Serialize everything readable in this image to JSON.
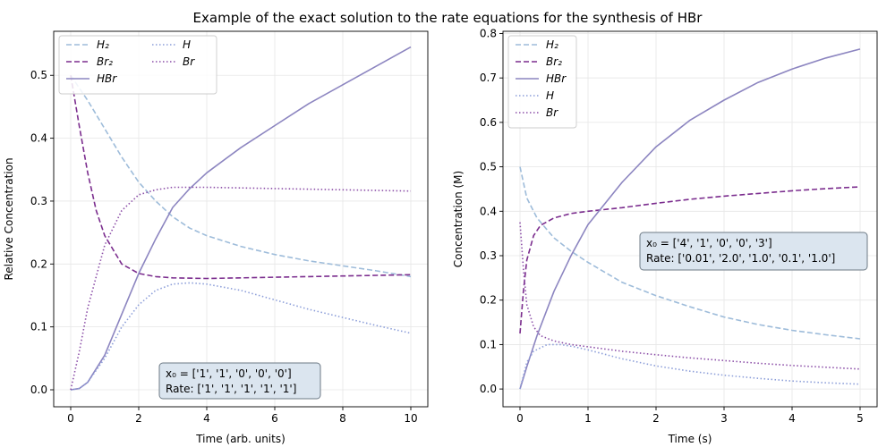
{
  "figure": {
    "title": "Example of the exact solution to the rate equations for the synthesis of HBr"
  },
  "chart_data": [
    {
      "type": "line",
      "xlabel": "Time (arb. units)",
      "ylabel": "Relative Concentration",
      "xlim": [
        -0.5,
        10.5
      ],
      "ylim": [
        -0.027,
        0.57
      ],
      "xticks": [
        0,
        2,
        4,
        6,
        8,
        10
      ],
      "yticks": [
        0.0,
        0.1,
        0.2,
        0.3,
        0.4,
        0.5
      ],
      "xtick_labels": [
        "0",
        "2",
        "4",
        "6",
        "8",
        "10"
      ],
      "ytick_labels": [
        "0.0",
        "0.1",
        "0.2",
        "0.3",
        "0.4",
        "0.5"
      ],
      "grid": true,
      "legend": {
        "placement": "top-left",
        "columns": 2
      },
      "annotation": {
        "line1": "x₀ = ['1', '1', '0', '0', '0']",
        "line2": "Rate: ['1', '1', '1', '1', '1']"
      },
      "series": [
        {
          "name": "H₂",
          "color": "#9ebcda",
          "style": "dashed",
          "x": [
            0,
            0.5,
            1,
            1.5,
            2,
            2.5,
            3,
            3.5,
            4,
            5,
            6,
            7,
            8,
            9,
            10
          ],
          "y": [
            0.5,
            0.46,
            0.415,
            0.37,
            0.33,
            0.3,
            0.275,
            0.257,
            0.245,
            0.228,
            0.215,
            0.205,
            0.197,
            0.189,
            0.18
          ]
        },
        {
          "name": "Br₂",
          "color": "#7b2d8e",
          "style": "dashed",
          "x": [
            0,
            0.25,
            0.5,
            0.75,
            1,
            1.5,
            2,
            2.5,
            3,
            4,
            5,
            6,
            7,
            8,
            9,
            10
          ],
          "y": [
            0.5,
            0.42,
            0.345,
            0.285,
            0.245,
            0.2,
            0.185,
            0.18,
            0.178,
            0.177,
            0.178,
            0.179,
            0.18,
            0.181,
            0.182,
            0.183
          ]
        },
        {
          "name": "HBr",
          "color": "#8c85c0",
          "style": "solid",
          "x": [
            0,
            0.25,
            0.5,
            1,
            1.5,
            2,
            2.5,
            3,
            3.5,
            4,
            5,
            6,
            7,
            8,
            9,
            10
          ],
          "y": [
            0,
            0.002,
            0.012,
            0.055,
            0.12,
            0.185,
            0.24,
            0.29,
            0.32,
            0.345,
            0.385,
            0.42,
            0.455,
            0.485,
            0.515,
            0.545
          ]
        },
        {
          "name": "H",
          "color": "#8c9ed9",
          "style": "dotted",
          "x": [
            0,
            0.25,
            0.5,
            1,
            1.5,
            2,
            2.5,
            3,
            3.5,
            4,
            5,
            6,
            7,
            8,
            9,
            10
          ],
          "y": [
            0,
            0.002,
            0.012,
            0.05,
            0.1,
            0.135,
            0.158,
            0.168,
            0.17,
            0.168,
            0.158,
            0.143,
            0.128,
            0.115,
            0.102,
            0.09
          ]
        },
        {
          "name": "Br",
          "color": "#8c4fa8",
          "style": "dotted",
          "x": [
            0,
            0.25,
            0.5,
            1,
            1.5,
            2,
            2.5,
            3,
            3.5,
            4,
            5,
            6,
            7,
            8,
            9,
            10
          ],
          "y": [
            0,
            0.06,
            0.13,
            0.23,
            0.285,
            0.31,
            0.318,
            0.322,
            0.322,
            0.322,
            0.321,
            0.32,
            0.319,
            0.318,
            0.317,
            0.316
          ]
        }
      ]
    },
    {
      "type": "line",
      "xlabel": "Time (s)",
      "ylabel": "Concentration (M)",
      "xlim": [
        -0.25,
        5.25
      ],
      "ylim": [
        -0.04,
        0.805
      ],
      "xticks": [
        0,
        1,
        2,
        3,
        4,
        5
      ],
      "yticks": [
        0.0,
        0.1,
        0.2,
        0.3,
        0.4,
        0.5,
        0.6,
        0.7,
        0.8
      ],
      "xtick_labels": [
        "0",
        "1",
        "2",
        "3",
        "4",
        "5"
      ],
      "ytick_labels": [
        "0.0",
        "0.1",
        "0.2",
        "0.3",
        "0.4",
        "0.5",
        "0.6",
        "0.7",
        "0.8"
      ],
      "grid": true,
      "legend": {
        "placement": "top-left",
        "columns": 1
      },
      "annotation": {
        "line1": "x₀ = ['4', '1', '0', '0', '3']",
        "line2": "Rate: ['0.01', '2.0', '1.0', '0.1', '1.0']"
      },
      "series": [
        {
          "name": "H₂",
          "color": "#9ebcda",
          "style": "dashed",
          "x": [
            0,
            0.1,
            0.25,
            0.5,
            0.75,
            1,
            1.5,
            2,
            2.5,
            3,
            3.5,
            4,
            4.5,
            5
          ],
          "y": [
            0.5,
            0.43,
            0.385,
            0.34,
            0.31,
            0.285,
            0.24,
            0.21,
            0.185,
            0.162,
            0.145,
            0.132,
            0.122,
            0.113
          ]
        },
        {
          "name": "Br₂",
          "color": "#7b2d8e",
          "style": "dashed",
          "x": [
            0,
            0.05,
            0.1,
            0.2,
            0.3,
            0.5,
            0.75,
            1,
            1.5,
            2,
            2.5,
            3,
            3.5,
            4,
            4.5,
            5
          ],
          "y": [
            0.125,
            0.22,
            0.29,
            0.345,
            0.368,
            0.385,
            0.395,
            0.4,
            0.408,
            0.418,
            0.427,
            0.434,
            0.44,
            0.446,
            0.451,
            0.455
          ]
        },
        {
          "name": "HBr",
          "color": "#8c85c0",
          "style": "solid",
          "x": [
            0,
            0.1,
            0.25,
            0.5,
            0.75,
            1,
            1.5,
            2,
            2.5,
            3,
            3.5,
            4,
            4.5,
            5
          ],
          "y": [
            0,
            0.05,
            0.12,
            0.22,
            0.3,
            0.37,
            0.465,
            0.545,
            0.605,
            0.65,
            0.69,
            0.72,
            0.745,
            0.765
          ]
        },
        {
          "name": "H",
          "color": "#8c9ed9",
          "style": "dotted",
          "x": [
            0,
            0.1,
            0.2,
            0.4,
            0.6,
            0.8,
            1,
            1.5,
            2,
            2.5,
            3,
            3.5,
            4,
            4.5,
            5
          ],
          "y": [
            0,
            0.06,
            0.085,
            0.1,
            0.1,
            0.095,
            0.088,
            0.068,
            0.052,
            0.04,
            0.031,
            0.024,
            0.018,
            0.014,
            0.011
          ]
        },
        {
          "name": "Br",
          "color": "#8c4fa8",
          "style": "dotted",
          "x": [
            0,
            0.05,
            0.1,
            0.2,
            0.3,
            0.5,
            0.75,
            1,
            1.5,
            2,
            2.5,
            3,
            3.5,
            4,
            4.5,
            5
          ],
          "y": [
            0.375,
            0.27,
            0.19,
            0.14,
            0.12,
            0.108,
            0.1,
            0.095,
            0.085,
            0.077,
            0.07,
            0.064,
            0.058,
            0.053,
            0.049,
            0.045
          ]
        }
      ]
    }
  ]
}
